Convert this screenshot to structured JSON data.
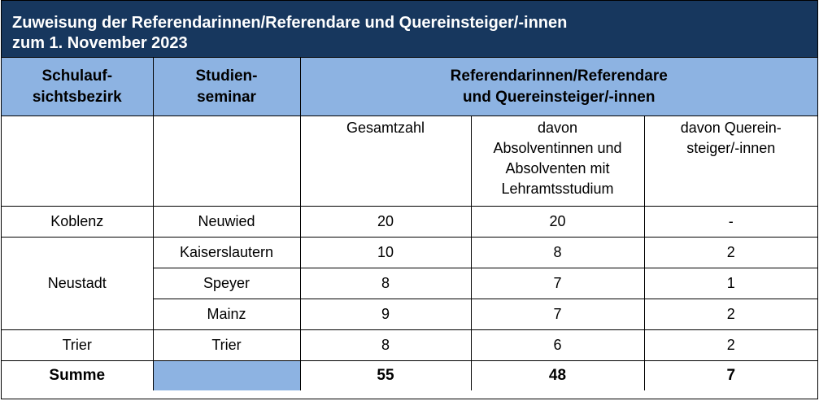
{
  "title": {
    "line1": "Zuweisung der Referendarinnen/Referendare und Quereinsteiger/-innen",
    "line2": "zum 1. November 2023"
  },
  "header": {
    "col1_line1": "Schulauf-",
    "col1_line2": "sichtsbezirk",
    "col2_line1": "Studien-",
    "col2_line2": "seminar",
    "group_line1": "Referendarinnen/Referendare",
    "group_line2": "und Quereinsteiger/-innen"
  },
  "subheader": {
    "gesamtzahl": "Gesamtzahl",
    "absolventen_line1": "davon",
    "absolventen_line2": "Absolventinnen und",
    "absolventen_line3": "Absolventen mit",
    "absolventen_line4": "Lehramtsstudium",
    "quereinsteiger_line1": "davon Querein-",
    "quereinsteiger_line2": "steiger/-innen"
  },
  "rows": [
    {
      "bezirk": "Koblenz",
      "seminar": "Neuwied",
      "gesamt": "20",
      "absolventen": "20",
      "quer": "-"
    },
    {
      "bezirk": "Neustadt",
      "seminar": "Kaiserslautern",
      "gesamt": "10",
      "absolventen": "8",
      "quer": "2"
    },
    {
      "seminar": "Speyer",
      "gesamt": "8",
      "absolventen": "7",
      "quer": "1"
    },
    {
      "seminar": "Mainz",
      "gesamt": "9",
      "absolventen": "7",
      "quer": "2"
    },
    {
      "bezirk": "Trier",
      "seminar": "Trier",
      "gesamt": "8",
      "absolventen": "6",
      "quer": "2"
    }
  ],
  "summe": {
    "label": "Summe",
    "gesamt": "55",
    "absolventen": "48",
    "quer": "7"
  },
  "colors": {
    "title_bg": "#17375e",
    "header_bg": "#8db3e2"
  }
}
